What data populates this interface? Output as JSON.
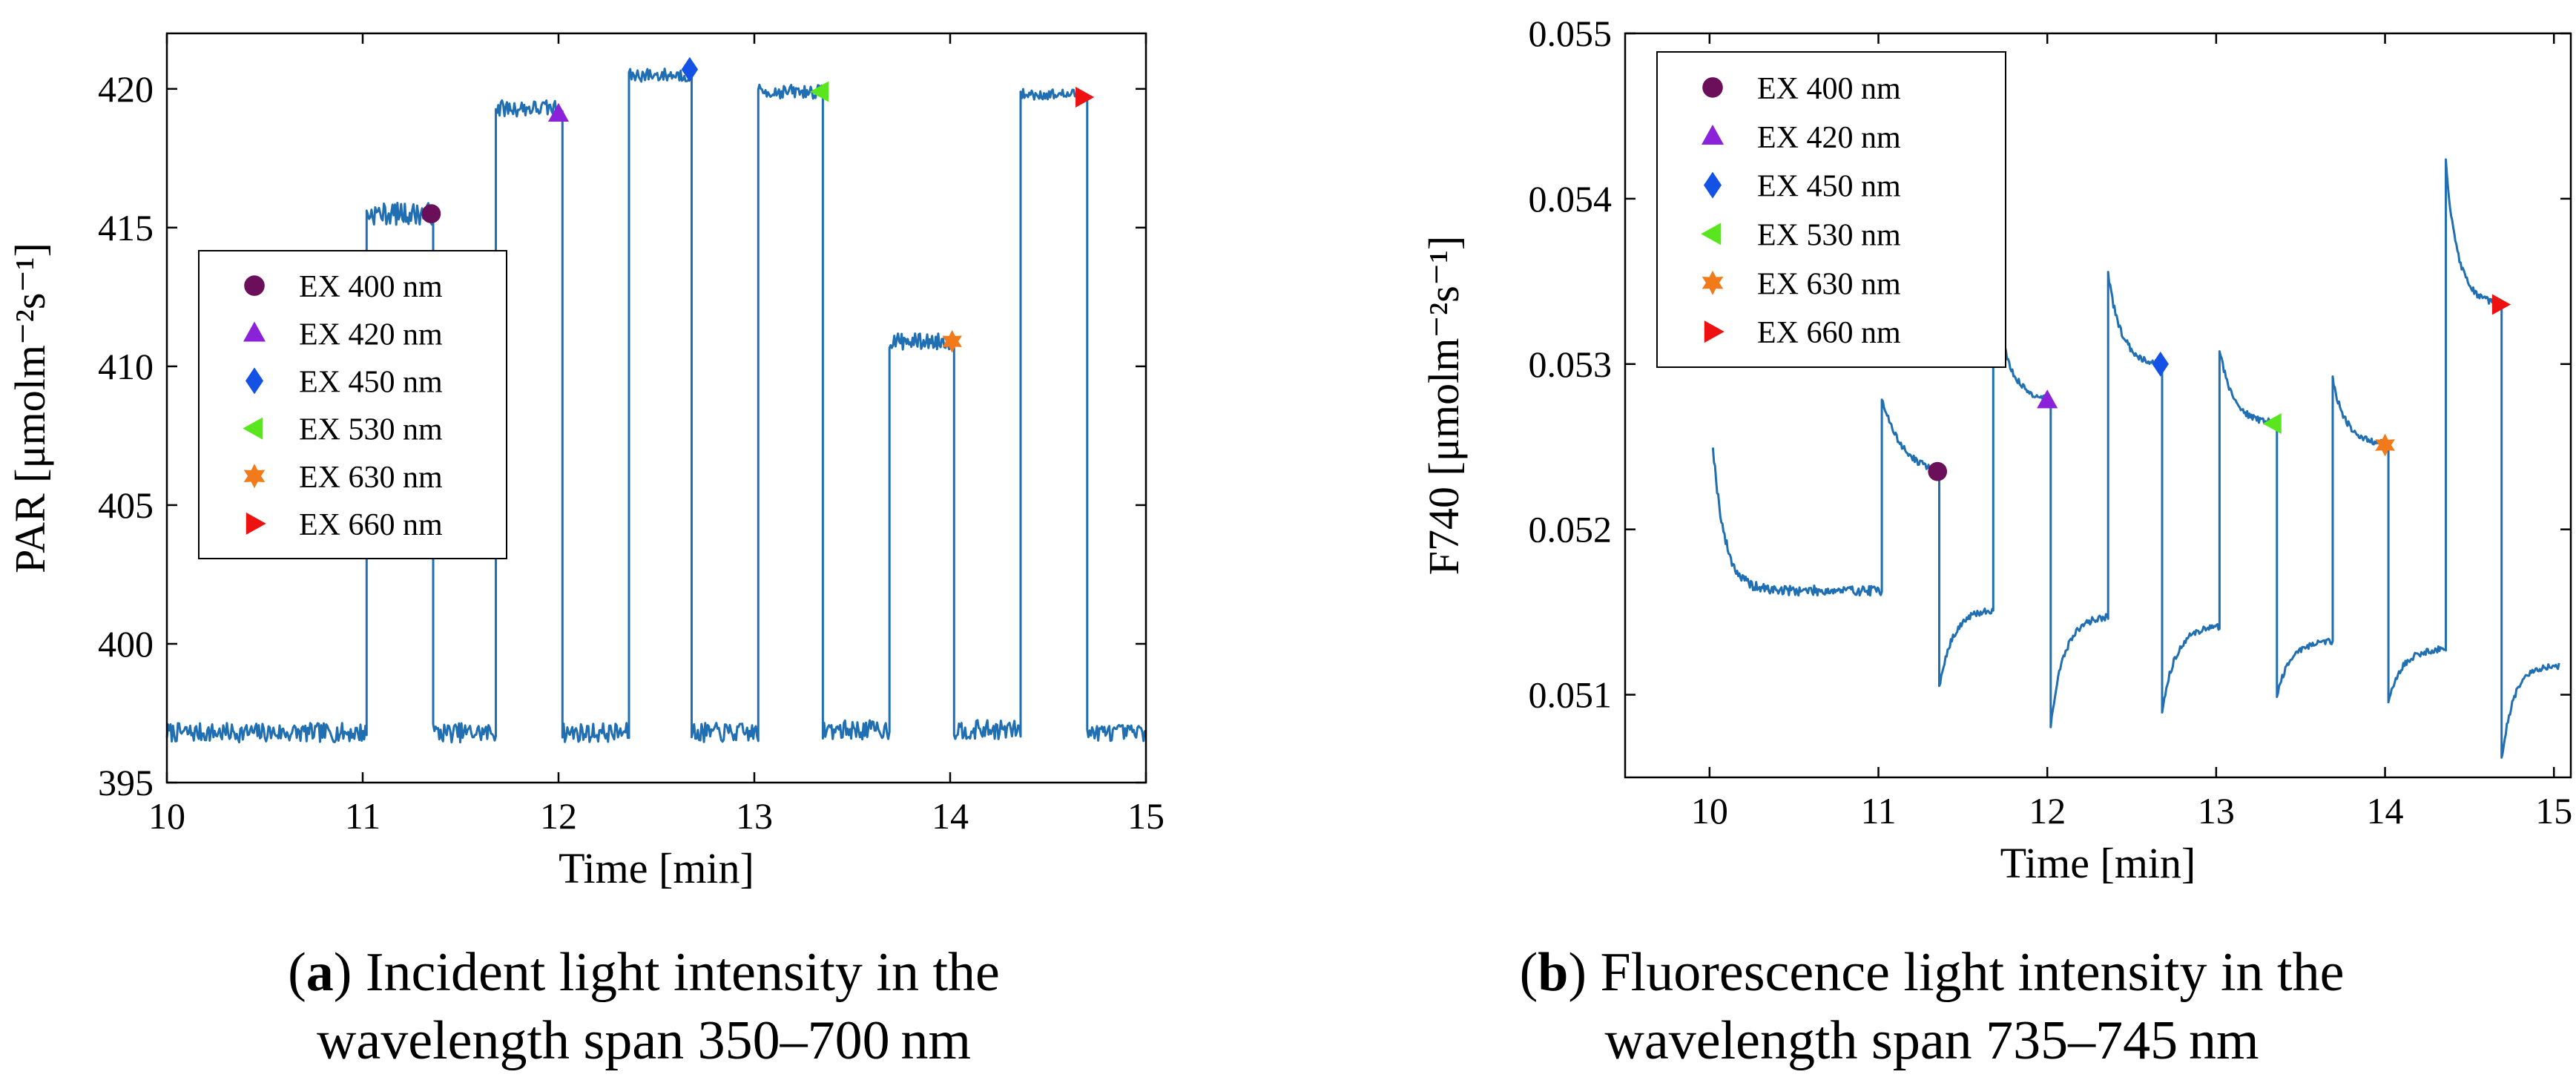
{
  "chart_data": [
    {
      "id": "a",
      "type": "line",
      "caption_label": "a",
      "caption_line1": "Incident light intensity in the",
      "caption_line2": "wavelength span 350–700 nm",
      "xlabel": "Time [min]",
      "ylabel": "PAR [μmolm⁻²s⁻¹]",
      "xlim": [
        10,
        15
      ],
      "ylim": [
        395,
        422
      ],
      "xticks": [
        10,
        11,
        12,
        13,
        14,
        15
      ],
      "yticks": [
        395,
        400,
        405,
        410,
        415,
        420
      ],
      "ytick_labels": [
        "395",
        "400",
        "405",
        "410",
        "415",
        "420"
      ],
      "grid": false,
      "legend_position": "center-left",
      "line_color": "#1f6fb2",
      "series": [
        {
          "name": "PAR",
          "segments": [
            {
              "x0": 10.0,
              "x1": 11.02,
              "level": 396.8,
              "rise": 0,
              "tau": 0.1,
              "noise": 0.35
            },
            {
              "x0": 11.02,
              "x1": 11.36,
              "level": 415.5,
              "rise": 0,
              "tau": 0.1,
              "noise": 0.4
            },
            {
              "x0": 11.36,
              "x1": 11.68,
              "level": 396.8,
              "rise": 0,
              "tau": 0.1,
              "noise": 0.35
            },
            {
              "x0": 11.68,
              "x1": 12.02,
              "level": 419.3,
              "rise": 0,
              "tau": 0.1,
              "noise": 0.3
            },
            {
              "x0": 12.02,
              "x1": 12.36,
              "level": 396.8,
              "rise": 0,
              "tau": 0.1,
              "noise": 0.35
            },
            {
              "x0": 12.36,
              "x1": 12.68,
              "level": 420.5,
              "rise": 0,
              "tau": 0.1,
              "noise": 0.25
            },
            {
              "x0": 12.68,
              "x1": 13.02,
              "level": 396.8,
              "rise": 0,
              "tau": 0.1,
              "noise": 0.35
            },
            {
              "x0": 13.02,
              "x1": 13.35,
              "level": 419.9,
              "rise": 0,
              "tau": 0.1,
              "noise": 0.25
            },
            {
              "x0": 13.35,
              "x1": 13.69,
              "level": 396.9,
              "rise": 0,
              "tau": 0.1,
              "noise": 0.35
            },
            {
              "x0": 13.69,
              "x1": 14.02,
              "level": 410.9,
              "rise": 0,
              "tau": 0.1,
              "noise": 0.3
            },
            {
              "x0": 14.02,
              "x1": 14.36,
              "level": 396.9,
              "rise": 0,
              "tau": 0.1,
              "noise": 0.35
            },
            {
              "x0": 14.36,
              "x1": 14.7,
              "level": 419.8,
              "rise": 0,
              "tau": 0.1,
              "noise": 0.2
            },
            {
              "x0": 14.7,
              "x1": 15.0,
              "level": 396.8,
              "rise": 0,
              "tau": 0.1,
              "noise": 0.3
            }
          ]
        }
      ],
      "markers": [
        {
          "label": "EX 400 nm",
          "x": 11.35,
          "y": 415.5,
          "shape": "circle",
          "color": "#6b0f5a"
        },
        {
          "label": "EX 420 nm",
          "x": 12.0,
          "y": 419.1,
          "shape": "triangle-up",
          "color": "#8b22d9"
        },
        {
          "label": "EX 450 nm",
          "x": 12.67,
          "y": 420.7,
          "shape": "diamond",
          "color": "#1452e6"
        },
        {
          "label": "EX 530 nm",
          "x": 13.34,
          "y": 419.9,
          "shape": "triangle-left",
          "color": "#5ae61e"
        },
        {
          "label": "EX 630 nm",
          "x": 14.01,
          "y": 410.9,
          "shape": "hexagram",
          "color": "#f27a1a"
        },
        {
          "label": "EX 660 nm",
          "x": 14.68,
          "y": 419.7,
          "shape": "triangle-right",
          "color": "#ee1111"
        }
      ]
    },
    {
      "id": "b",
      "type": "line",
      "caption_label": "b",
      "caption_line1": "Fluorescence light intensity in the",
      "caption_line2": "wavelength span 735–745 nm",
      "xlabel": "Time [min]",
      "ylabel": "F740 [μmolm⁻²s⁻¹]",
      "xlim": [
        9.5,
        15.1
      ],
      "ylim": [
        0.0505,
        0.055
      ],
      "xticks": [
        10,
        11,
        12,
        13,
        14,
        15
      ],
      "yticks": [
        0.051,
        0.052,
        0.053,
        0.054,
        0.055
      ],
      "ytick_labels": [
        "0.051",
        "0.052",
        "0.053",
        "0.054",
        "0.055"
      ],
      "grid": false,
      "legend_position": "top-left",
      "line_color": "#1f6fb2",
      "series": [
        {
          "name": "F740",
          "segments": [
            {
              "x0": 10.02,
              "x1": 11.02,
              "level": 0.05163,
              "rise": 0.00088,
              "tau": 0.07,
              "noise": 3e-05
            },
            {
              "x0": 11.02,
              "x1": 11.36,
              "level": 0.05233,
              "rise": 0.00047,
              "tau": 0.12,
              "noise": 2e-05
            },
            {
              "x0": 11.36,
              "x1": 11.68,
              "level": 0.05152,
              "rise": -0.00048,
              "tau": 0.08,
              "noise": 2e-05
            },
            {
              "x0": 11.68,
              "x1": 12.02,
              "level": 0.05278,
              "rise": 0.00073,
              "tau": 0.08,
              "noise": 2e-05
            },
            {
              "x0": 12.02,
              "x1": 12.36,
              "level": 0.05148,
              "rise": -0.00066,
              "tau": 0.08,
              "noise": 2e-05
            },
            {
              "x0": 12.36,
              "x1": 12.68,
              "level": 0.05299,
              "rise": 0.00055,
              "tau": 0.08,
              "noise": 2e-05
            },
            {
              "x0": 12.68,
              "x1": 13.02,
              "level": 0.05142,
              "rise": -0.00052,
              "tau": 0.08,
              "noise": 2e-05
            },
            {
              "x0": 13.02,
              "x1": 13.36,
              "level": 0.05264,
              "rise": 0.00045,
              "tau": 0.08,
              "noise": 2e-05
            },
            {
              "x0": 13.36,
              "x1": 13.69,
              "level": 0.05133,
              "rise": -0.00033,
              "tau": 0.08,
              "noise": 2e-05
            },
            {
              "x0": 13.69,
              "x1": 14.02,
              "level": 0.05251,
              "rise": 0.0004,
              "tau": 0.08,
              "noise": 2e-05
            },
            {
              "x0": 14.02,
              "x1": 14.36,
              "level": 0.05128,
              "rise": -0.00032,
              "tau": 0.08,
              "noise": 2e-05
            },
            {
              "x0": 14.36,
              "x1": 14.69,
              "level": 0.05336,
              "rise": 0.00086,
              "tau": 0.07,
              "noise": 2e-05
            },
            {
              "x0": 14.69,
              "x1": 15.03,
              "level": 0.05118,
              "rise": -0.00058,
              "tau": 0.07,
              "noise": 2e-05
            }
          ]
        }
      ],
      "markers": [
        {
          "label": "EX 400 nm",
          "x": 11.35,
          "y": 0.05235,
          "shape": "circle",
          "color": "#6b0f5a"
        },
        {
          "label": "EX 420 nm",
          "x": 12.0,
          "y": 0.05278,
          "shape": "triangle-up",
          "color": "#8b22d9"
        },
        {
          "label": "EX 450 nm",
          "x": 12.67,
          "y": 0.053,
          "shape": "diamond",
          "color": "#1452e6"
        },
        {
          "label": "EX 530 nm",
          "x": 13.34,
          "y": 0.05264,
          "shape": "triangle-left",
          "color": "#5ae61e"
        },
        {
          "label": "EX 630 nm",
          "x": 14.0,
          "y": 0.05251,
          "shape": "hexagram",
          "color": "#f27a1a"
        },
        {
          "label": "EX 660 nm",
          "x": 14.68,
          "y": 0.05336,
          "shape": "triangle-right",
          "color": "#ee1111"
        }
      ]
    }
  ]
}
